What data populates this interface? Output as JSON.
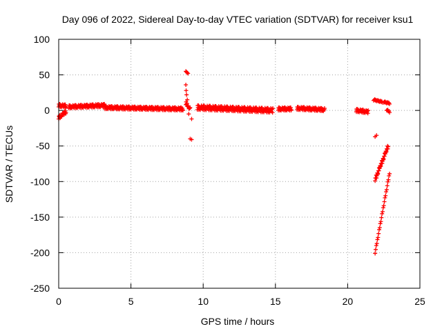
{
  "chart_data": {
    "type": "scatter",
    "title": "Day 096 of 2022, Sidereal Day-to-day VTEC variation (SDTVAR) for receiver ksu1",
    "xlabel": "GPS time / hours",
    "ylabel": "SDTVAR / TECUs",
    "xlim": [
      0,
      25
    ],
    "ylim": [
      -250,
      100
    ],
    "xticks": [
      0,
      5,
      10,
      15,
      20,
      25
    ],
    "yticks": [
      -250,
      -200,
      -150,
      -100,
      -50,
      0,
      50,
      100
    ],
    "grid": true,
    "marker": "plus",
    "color": "#ff0000",
    "segments": [
      {
        "x": [
          0.0,
          0.5
        ],
        "y": [
          7,
          6
        ],
        "spread": 2
      },
      {
        "x": [
          0.0,
          0.5
        ],
        "y": [
          -10,
          -2
        ],
        "spread": 2
      },
      {
        "x": [
          0.7,
          3.2
        ],
        "y": [
          5,
          7
        ],
        "spread": 2
      },
      {
        "x": [
          3.2,
          8.6
        ],
        "y": [
          4,
          2
        ],
        "spread": 2
      },
      {
        "x": [
          8.8,
          9.1
        ],
        "y": [
          10,
          2
        ],
        "spread": 2
      },
      {
        "x": [
          9.6,
          14.8
        ],
        "y": [
          4,
          0
        ],
        "spread": 3
      },
      {
        "x": [
          15.2,
          16.1
        ],
        "y": [
          2,
          2
        ],
        "spread": 2
      },
      {
        "x": [
          16.5,
          18.4
        ],
        "y": [
          3,
          1
        ],
        "spread": 2
      },
      {
        "x": [
          20.6,
          21.4
        ],
        "y": [
          0,
          -2
        ],
        "spread": 2
      },
      {
        "x": [
          21.8,
          22.4
        ],
        "y": [
          15,
          12
        ],
        "spread": 1
      },
      {
        "x": [
          22.5,
          22.9
        ],
        "y": [
          12,
          10
        ],
        "spread": 1
      },
      {
        "x": [
          22.7,
          22.9
        ],
        "y": [
          1,
          -2
        ],
        "spread": 1
      },
      {
        "x": [
          21.9,
          22.8
        ],
        "y": [
          -97,
          -50
        ],
        "spread": 2
      },
      {
        "x": [
          21.9,
          22.9
        ],
        "y": [
          -200,
          -88
        ],
        "spread": 1
      }
    ],
    "points": [
      {
        "x": 8.8,
        "y": 55
      },
      {
        "x": 8.85,
        "y": 54
      },
      {
        "x": 8.9,
        "y": 53
      },
      {
        "x": 8.95,
        "y": 52
      },
      {
        "x": 8.8,
        "y": 36
      },
      {
        "x": 8.82,
        "y": 28
      },
      {
        "x": 8.85,
        "y": 22
      },
      {
        "x": 8.9,
        "y": 15
      },
      {
        "x": 9.0,
        "y": -5
      },
      {
        "x": 9.2,
        "y": -12
      },
      {
        "x": 9.1,
        "y": -40
      },
      {
        "x": 9.2,
        "y": -41
      },
      {
        "x": 21.9,
        "y": -37
      },
      {
        "x": 22.0,
        "y": -35
      }
    ]
  }
}
